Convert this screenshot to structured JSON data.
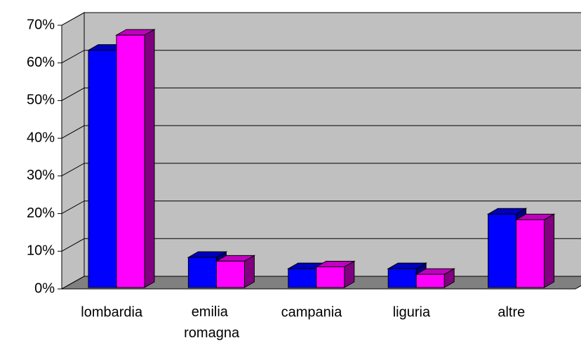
{
  "chart_data": {
    "type": "bar3d",
    "categories": [
      "lombardia",
      "emilia romagna",
      "campania",
      "liguria",
      "altre"
    ],
    "series": [
      {
        "color": "#0000ff",
        "values": [
          63,
          8,
          5,
          5,
          19.5
        ]
      },
      {
        "color": "#ff00ff",
        "values": [
          67,
          7,
          5.5,
          3.5,
          18
        ]
      }
    ],
    "ylim": [
      0,
      70
    ],
    "yticks": [
      {
        "value": 0,
        "label": "0%"
      },
      {
        "value": 10,
        "label": "10%"
      },
      {
        "value": 20,
        "label": "20%"
      },
      {
        "value": 30,
        "label": "30%"
      },
      {
        "value": 40,
        "label": "40%"
      },
      {
        "value": 50,
        "label": "50%"
      },
      {
        "value": 60,
        "label": "60%"
      },
      {
        "value": 70,
        "label": "70%"
      }
    ],
    "grid": true
  }
}
